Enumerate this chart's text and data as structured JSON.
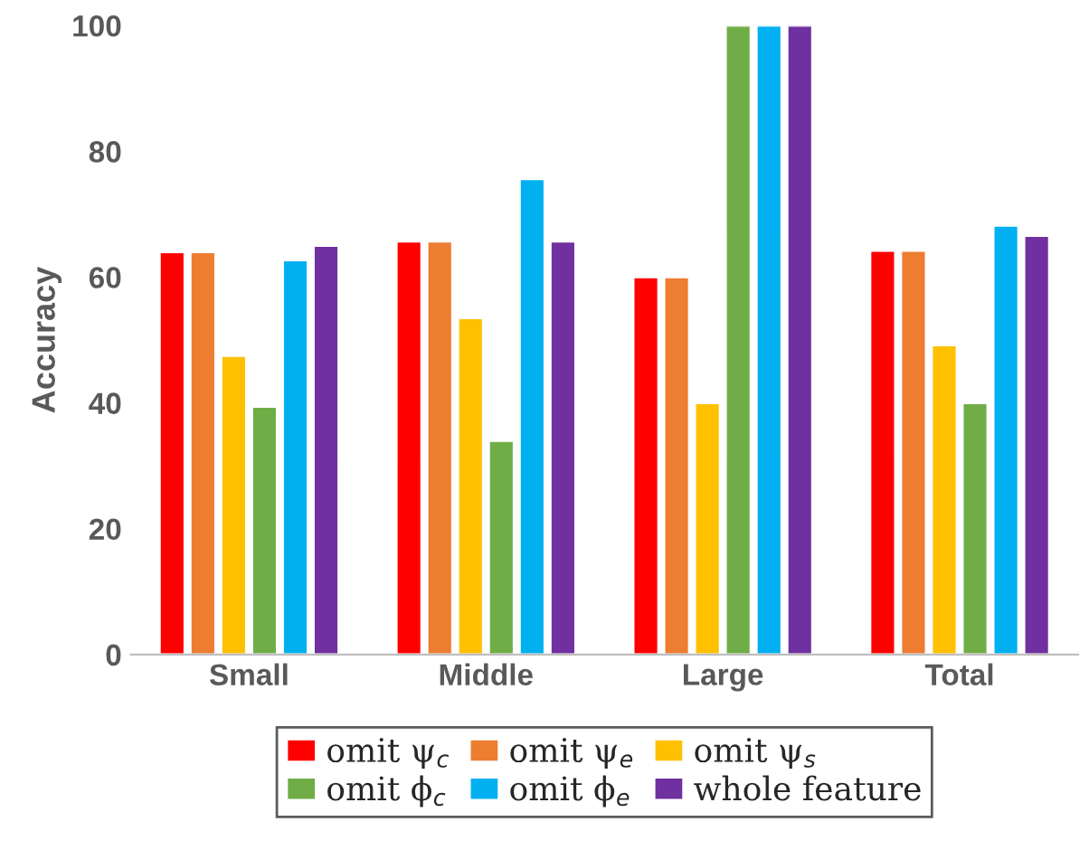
{
  "chart_data": {
    "type": "bar",
    "ylabel": "Accuracy",
    "categories": [
      "Small",
      "Middle",
      "Large",
      "Total"
    ],
    "series": [
      {
        "name": "omit ψ$_{c}$",
        "color": "#ff0000",
        "values": [
          64,
          65.7,
          60,
          64.2
        ]
      },
      {
        "name": "omit ψ$_{e}$",
        "color": "#ed7d31",
        "values": [
          64,
          65.7,
          60,
          64.2
        ]
      },
      {
        "name": "omit ψ$_{s}$",
        "color": "#ffc000",
        "values": [
          47.5,
          53.5,
          40,
          49.2
        ]
      },
      {
        "name": "omit ϕ$_{c}$",
        "color": "#70ad47",
        "values": [
          39.4,
          34,
          100,
          40
        ]
      },
      {
        "name": "omit ϕ$_{e}$",
        "color": "#00b0f0",
        "values": [
          62.7,
          75.6,
          100,
          68.2
        ]
      },
      {
        "name": "whole feature",
        "color": "#7030a0",
        "values": [
          65,
          65.7,
          100,
          66.6
        ]
      }
    ],
    "ylim": [
      0,
      100
    ],
    "yticks": [
      0,
      20,
      40,
      60,
      80,
      100
    ],
    "grid": false,
    "legend": "bottom"
  }
}
